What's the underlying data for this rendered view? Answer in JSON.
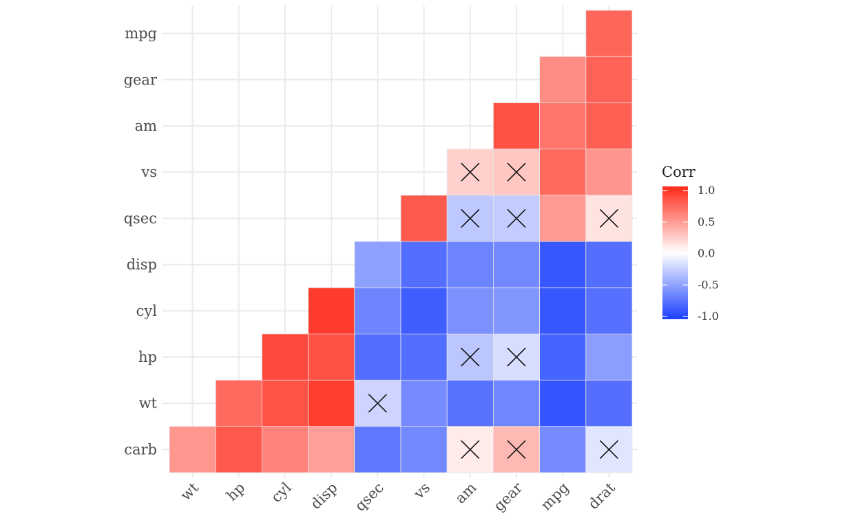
{
  "chart_data": {
    "type": "heatmap",
    "title": "",
    "xlabel": "",
    "ylabel": "",
    "x_categories": [
      "wt",
      "hp",
      "cyl",
      "disp",
      "qsec",
      "vs",
      "am",
      "gear",
      "mpg",
      "drat"
    ],
    "y_categories": [
      "carb",
      "wt",
      "hp",
      "cyl",
      "disp",
      "qsec",
      "vs",
      "am",
      "gear",
      "mpg"
    ],
    "cells": [
      {
        "x": "drat",
        "y": "mpg",
        "value": 0.68,
        "insignificant": false
      },
      {
        "x": "mpg",
        "y": "gear",
        "value": 0.48,
        "insignificant": false
      },
      {
        "x": "drat",
        "y": "gear",
        "value": 0.7,
        "insignificant": false
      },
      {
        "x": "gear",
        "y": "am",
        "value": 0.79,
        "insignificant": false
      },
      {
        "x": "mpg",
        "y": "am",
        "value": 0.6,
        "insignificant": false
      },
      {
        "x": "drat",
        "y": "am",
        "value": 0.71,
        "insignificant": false
      },
      {
        "x": "am",
        "y": "vs",
        "value": 0.17,
        "insignificant": true
      },
      {
        "x": "gear",
        "y": "vs",
        "value": 0.21,
        "insignificant": true
      },
      {
        "x": "mpg",
        "y": "vs",
        "value": 0.66,
        "insignificant": false
      },
      {
        "x": "drat",
        "y": "vs",
        "value": 0.44,
        "insignificant": false
      },
      {
        "x": "vs",
        "y": "qsec",
        "value": 0.74,
        "insignificant": false
      },
      {
        "x": "am",
        "y": "qsec",
        "value": -0.23,
        "insignificant": true
      },
      {
        "x": "gear",
        "y": "qsec",
        "value": -0.21,
        "insignificant": true
      },
      {
        "x": "mpg",
        "y": "qsec",
        "value": 0.42,
        "insignificant": false
      },
      {
        "x": "drat",
        "y": "qsec",
        "value": 0.09,
        "insignificant": true
      },
      {
        "x": "qsec",
        "y": "disp",
        "value": -0.43,
        "insignificant": false
      },
      {
        "x": "vs",
        "y": "disp",
        "value": -0.71,
        "insignificant": false
      },
      {
        "x": "am",
        "y": "disp",
        "value": -0.59,
        "insignificant": false
      },
      {
        "x": "gear",
        "y": "disp",
        "value": -0.56,
        "insignificant": false
      },
      {
        "x": "mpg",
        "y": "disp",
        "value": -0.85,
        "insignificant": false
      },
      {
        "x": "drat",
        "y": "disp",
        "value": -0.71,
        "insignificant": false
      },
      {
        "x": "disp",
        "y": "cyl",
        "value": 0.9,
        "insignificant": false
      },
      {
        "x": "qsec",
        "y": "cyl",
        "value": -0.59,
        "insignificant": false
      },
      {
        "x": "vs",
        "y": "cyl",
        "value": -0.81,
        "insignificant": false
      },
      {
        "x": "am",
        "y": "cyl",
        "value": -0.52,
        "insignificant": false
      },
      {
        "x": "gear",
        "y": "cyl",
        "value": -0.49,
        "insignificant": false
      },
      {
        "x": "mpg",
        "y": "cyl",
        "value": -0.85,
        "insignificant": false
      },
      {
        "x": "drat",
        "y": "cyl",
        "value": -0.7,
        "insignificant": false
      },
      {
        "x": "cyl",
        "y": "hp",
        "value": 0.83,
        "insignificant": false
      },
      {
        "x": "disp",
        "y": "hp",
        "value": 0.79,
        "insignificant": false
      },
      {
        "x": "qsec",
        "y": "hp",
        "value": -0.71,
        "insignificant": false
      },
      {
        "x": "vs",
        "y": "hp",
        "value": -0.72,
        "insignificant": false
      },
      {
        "x": "am",
        "y": "hp",
        "value": -0.24,
        "insignificant": true
      },
      {
        "x": "gear",
        "y": "hp",
        "value": -0.13,
        "insignificant": true
      },
      {
        "x": "mpg",
        "y": "hp",
        "value": -0.78,
        "insignificant": false
      },
      {
        "x": "drat",
        "y": "hp",
        "value": -0.45,
        "insignificant": false
      },
      {
        "x": "hp",
        "y": "wt",
        "value": 0.66,
        "insignificant": false
      },
      {
        "x": "cyl",
        "y": "wt",
        "value": 0.78,
        "insignificant": false
      },
      {
        "x": "disp",
        "y": "wt",
        "value": 0.89,
        "insignificant": false
      },
      {
        "x": "qsec",
        "y": "wt",
        "value": -0.17,
        "insignificant": true
      },
      {
        "x": "vs",
        "y": "wt",
        "value": -0.55,
        "insignificant": false
      },
      {
        "x": "am",
        "y": "wt",
        "value": -0.69,
        "insignificant": false
      },
      {
        "x": "gear",
        "y": "wt",
        "value": -0.58,
        "insignificant": false
      },
      {
        "x": "mpg",
        "y": "wt",
        "value": -0.87,
        "insignificant": false
      },
      {
        "x": "drat",
        "y": "wt",
        "value": -0.71,
        "insignificant": false
      },
      {
        "x": "wt",
        "y": "carb",
        "value": 0.43,
        "insignificant": false
      },
      {
        "x": "hp",
        "y": "carb",
        "value": 0.75,
        "insignificant": false
      },
      {
        "x": "cyl",
        "y": "carb",
        "value": 0.53,
        "insignificant": false
      },
      {
        "x": "disp",
        "y": "carb",
        "value": 0.39,
        "insignificant": false
      },
      {
        "x": "qsec",
        "y": "carb",
        "value": -0.66,
        "insignificant": false
      },
      {
        "x": "vs",
        "y": "carb",
        "value": -0.57,
        "insignificant": false
      },
      {
        "x": "am",
        "y": "carb",
        "value": 0.06,
        "insignificant": true
      },
      {
        "x": "gear",
        "y": "carb",
        "value": 0.27,
        "insignificant": true
      },
      {
        "x": "mpg",
        "y": "carb",
        "value": -0.55,
        "insignificant": false
      },
      {
        "x": "drat",
        "y": "carb",
        "value": -0.09,
        "insignificant": true
      }
    ],
    "color_scale": {
      "low": "#1a3fff",
      "mid": "#ffffff",
      "high": "#ff2a1a",
      "domain": [
        -1.0,
        1.0
      ]
    },
    "legend": {
      "title": "Corr",
      "position": "right",
      "tick_labels": [
        "1.0",
        "0.5",
        "0.0",
        "-0.5",
        "-1.0"
      ],
      "tick_values": [
        1.0,
        0.5,
        0.0,
        -0.5,
        -1.0
      ]
    },
    "grid": true,
    "colors": {
      "grid": "#ebebeb",
      "cell_border": "#e6e6e6",
      "cross": "#111111",
      "tick_text": "#4d4d4d"
    }
  }
}
